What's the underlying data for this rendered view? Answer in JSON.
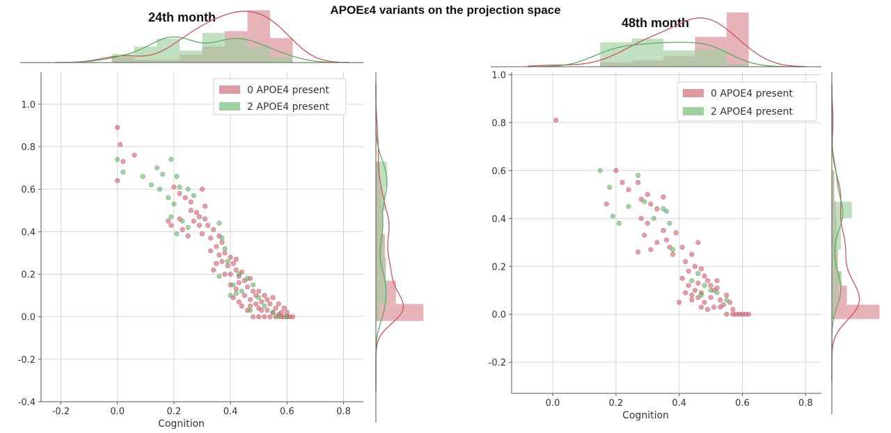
{
  "title": "APOEε4 variants on the projection space",
  "colors": {
    "zero": "#c9525e",
    "two": "#5aaa5f",
    "zero_fill": "#dd9aa1",
    "two_fill": "#9fd09f",
    "grid": "#d6d6d6"
  },
  "chart_data": [
    {
      "type": "scatter",
      "panel_title": "24th month",
      "xlabel": "Cognition",
      "ylabel": "",
      "xlim": [
        -0.27,
        0.87
      ],
      "ylim": [
        -0.4,
        1.15
      ],
      "xticks": [
        "-0.2",
        "0.0",
        "0.2",
        "0.4",
        "0.6",
        "0.8"
      ],
      "yticks": [
        "-0.4",
        "-0.2",
        "0.0",
        "0.2",
        "0.4",
        "0.6",
        "0.8",
        "1.0"
      ],
      "grid": true,
      "legend_position": "top-right",
      "marginals": "histogram + density on top (x) and right (y)",
      "series": [
        {
          "name": "0 APOE4 present",
          "color": "#c9525e",
          "points": [
            [
              0.0,
              0.89
            ],
            [
              0.01,
              0.81
            ],
            [
              0.02,
              0.73
            ],
            [
              0.0,
              0.64
            ],
            [
              0.06,
              0.76
            ],
            [
              0.2,
              0.61
            ],
            [
              0.22,
              0.58
            ],
            [
              0.24,
              0.56
            ],
            [
              0.18,
              0.45
            ],
            [
              0.19,
              0.43
            ],
            [
              0.23,
              0.41
            ],
            [
              0.26,
              0.5
            ],
            [
              0.28,
              0.49
            ],
            [
              0.29,
              0.47
            ],
            [
              0.31,
              0.46
            ],
            [
              0.31,
              0.52
            ],
            [
              0.27,
              0.45
            ],
            [
              0.29,
              0.43
            ],
            [
              0.32,
              0.43
            ],
            [
              0.34,
              0.41
            ],
            [
              0.3,
              0.39
            ],
            [
              0.33,
              0.37
            ],
            [
              0.36,
              0.38
            ],
            [
              0.37,
              0.35
            ],
            [
              0.35,
              0.33
            ],
            [
              0.33,
              0.31
            ],
            [
              0.36,
              0.29
            ],
            [
              0.38,
              0.3
            ],
            [
              0.37,
              0.26
            ],
            [
              0.39,
              0.24
            ],
            [
              0.4,
              0.28
            ],
            [
              0.41,
              0.25
            ],
            [
              0.42,
              0.27
            ],
            [
              0.4,
              0.2
            ],
            [
              0.42,
              0.22
            ],
            [
              0.43,
              0.19
            ],
            [
              0.44,
              0.21
            ],
            [
              0.45,
              0.17
            ],
            [
              0.4,
              0.15
            ],
            [
              0.42,
              0.13
            ],
            [
              0.43,
              0.16
            ],
            [
              0.46,
              0.14
            ],
            [
              0.47,
              0.18
            ],
            [
              0.48,
              0.12
            ],
            [
              0.45,
              0.1
            ],
            [
              0.47,
              0.08
            ],
            [
              0.49,
              0.1
            ],
            [
              0.5,
              0.12
            ],
            [
              0.51,
              0.07
            ],
            [
              0.52,
              0.1
            ],
            [
              0.53,
              0.08
            ],
            [
              0.54,
              0.06
            ],
            [
              0.55,
              0.09
            ],
            [
              0.56,
              0.04
            ],
            [
              0.57,
              0.06
            ],
            [
              0.58,
              0.02
            ],
            [
              0.59,
              0.04
            ],
            [
              0.6,
              0.0
            ],
            [
              0.61,
              0.0
            ],
            [
              0.62,
              0.0
            ],
            [
              0.58,
              0.0
            ],
            [
              0.56,
              0.0
            ],
            [
              0.54,
              0.0
            ],
            [
              0.52,
              0.0
            ],
            [
              0.5,
              0.0
            ],
            [
              0.48,
              0.0
            ],
            [
              0.46,
              0.03
            ],
            [
              0.44,
              0.05
            ],
            [
              0.5,
              0.04
            ],
            [
              0.53,
              0.03
            ],
            [
              0.55,
              0.02
            ],
            [
              0.57,
              0.01
            ],
            [
              0.59,
              0.0
            ],
            [
              0.6,
              0.02
            ],
            [
              0.49,
              0.06
            ],
            [
              0.51,
              0.03
            ],
            [
              0.38,
              0.2
            ],
            [
              0.35,
              0.25
            ],
            [
              0.34,
              0.22
            ],
            [
              0.41,
              0.09
            ],
            [
              0.43,
              0.07
            ],
            [
              0.47,
              0.05
            ],
            [
              0.25,
              0.38
            ],
            [
              0.22,
              0.46
            ],
            [
              0.26,
              0.54
            ],
            [
              0.3,
              0.6
            ]
          ]
        },
        {
          "name": "2 APOE4 present",
          "color": "#5aaa5f",
          "points": [
            [
              0.0,
              0.74
            ],
            [
              0.02,
              0.68
            ],
            [
              0.09,
              0.66
            ],
            [
              0.12,
              0.62
            ],
            [
              0.14,
              0.7
            ],
            [
              0.16,
              0.67
            ],
            [
              0.19,
              0.74
            ],
            [
              0.21,
              0.66
            ],
            [
              0.15,
              0.6
            ],
            [
              0.18,
              0.56
            ],
            [
              0.2,
              0.53
            ],
            [
              0.22,
              0.61
            ],
            [
              0.25,
              0.6
            ],
            [
              0.27,
              0.57
            ],
            [
              0.23,
              0.45
            ],
            [
              0.25,
              0.42
            ],
            [
              0.21,
              0.39
            ],
            [
              0.19,
              0.47
            ],
            [
              0.36,
              0.44
            ],
            [
              0.37,
              0.37
            ],
            [
              0.38,
              0.32
            ],
            [
              0.39,
              0.26
            ],
            [
              0.36,
              0.19
            ],
            [
              0.41,
              0.15
            ],
            [
              0.42,
              0.11
            ],
            [
              0.44,
              0.12
            ],
            [
              0.46,
              0.18
            ],
            [
              0.48,
              0.15
            ],
            [
              0.5,
              0.09
            ],
            [
              0.52,
              0.05
            ],
            [
              0.55,
              0.02
            ],
            [
              0.57,
              0.0
            ],
            [
              0.6,
              0.0
            ],
            [
              0.47,
              0.03
            ],
            [
              0.4,
              0.1
            ],
            [
              0.43,
              0.2
            ]
          ]
        }
      ],
      "top_hist": {
        "bins": [
          -0.02,
          0.06,
          0.14,
          0.22,
          0.3,
          0.38,
          0.46,
          0.54,
          0.62
        ],
        "series": [
          {
            "name": "0 APOE4 present",
            "density": [
              0.09,
              0.05,
              0.05,
              0.14,
              0.28,
              0.55,
              0.92,
              0.43
            ]
          },
          {
            "name": "2 APOE4 present",
            "density": [
              0.15,
              0.28,
              0.42,
              0.21,
              0.52,
              0.42,
              0.28,
              0.1
            ]
          }
        ]
      },
      "right_hist": {
        "bins": [
          -0.02,
          0.06,
          0.17,
          0.28,
          0.39,
          0.5,
          0.61,
          0.73
        ],
        "series": [
          {
            "name": "0 APOE4 present",
            "density": [
              0.95,
              0.4,
              0.2,
              0.18,
              0.14,
              0.12,
              0.08
            ]
          },
          {
            "name": "2 APOE4 present",
            "density": [
              0.08,
              0.22,
              0.18,
              0.15,
              0.12,
              0.18,
              0.22
            ]
          }
        ]
      }
    },
    {
      "type": "scatter",
      "panel_title": "48th month",
      "xlabel": "Cognition",
      "ylabel": "",
      "xlim": [
        -0.13,
        0.85
      ],
      "ylim": [
        -0.33,
        1.01
      ],
      "xticks": [
        "0.0",
        "0.2",
        "0.4",
        "0.6",
        "0.8"
      ],
      "yticks": [
        "-0.2",
        "0.0",
        "0.2",
        "0.4",
        "0.6",
        "0.8",
        "1.0"
      ],
      "grid": true,
      "legend_position": "top-right",
      "marginals": "histogram + density on top (x) and right (y)",
      "series": [
        {
          "name": "0 APOE4 present",
          "color": "#c9525e",
          "points": [
            [
              0.01,
              0.81
            ],
            [
              0.2,
              0.6
            ],
            [
              0.22,
              0.55
            ],
            [
              0.24,
              0.52
            ],
            [
              0.27,
              0.55
            ],
            [
              0.17,
              0.46
            ],
            [
              0.28,
              0.48
            ],
            [
              0.3,
              0.5
            ],
            [
              0.31,
              0.46
            ],
            [
              0.33,
              0.44
            ],
            [
              0.35,
              0.49
            ],
            [
              0.28,
              0.4
            ],
            [
              0.3,
              0.38
            ],
            [
              0.27,
              0.26
            ],
            [
              0.31,
              0.27
            ],
            [
              0.29,
              0.33
            ],
            [
              0.33,
              0.3
            ],
            [
              0.35,
              0.35
            ],
            [
              0.36,
              0.31
            ],
            [
              0.37,
              0.28
            ],
            [
              0.41,
              0.28
            ],
            [
              0.42,
              0.22
            ],
            [
              0.43,
              0.18
            ],
            [
              0.44,
              0.25
            ],
            [
              0.45,
              0.2
            ],
            [
              0.46,
              0.3
            ],
            [
              0.47,
              0.19
            ],
            [
              0.48,
              0.16
            ],
            [
              0.49,
              0.14
            ],
            [
              0.41,
              0.15
            ],
            [
              0.43,
              0.12
            ],
            [
              0.45,
              0.1
            ],
            [
              0.46,
              0.07
            ],
            [
              0.47,
              0.09
            ],
            [
              0.48,
              0.05
            ],
            [
              0.5,
              0.07
            ],
            [
              0.51,
              0.1
            ],
            [
              0.52,
              0.11
            ],
            [
              0.53,
              0.06
            ],
            [
              0.54,
              0.04
            ],
            [
              0.55,
              0.08
            ],
            [
              0.56,
              0.05
            ],
            [
              0.57,
              0.02
            ],
            [
              0.58,
              0.0
            ],
            [
              0.59,
              0.0
            ],
            [
              0.6,
              0.0
            ],
            [
              0.61,
              0.0
            ],
            [
              0.62,
              0.0
            ],
            [
              0.57,
              0.0
            ],
            [
              0.55,
              0.0
            ],
            [
              0.53,
              0.03
            ],
            [
              0.51,
              0.03
            ],
            [
              0.49,
              0.02
            ],
            [
              0.47,
              0.03
            ],
            [
              0.44,
              0.06
            ],
            [
              0.42,
              0.09
            ],
            [
              0.4,
              0.05
            ],
            [
              0.5,
              0.12
            ],
            [
              0.52,
              0.14
            ],
            [
              0.46,
              0.13
            ],
            [
              0.44,
              0.08
            ],
            [
              0.39,
              0.34
            ],
            [
              0.38,
              0.25
            ]
          ]
        },
        {
          "name": "2 APOE4 present",
          "color": "#5aaa5f",
          "points": [
            [
              0.15,
              0.6
            ],
            [
              0.18,
              0.53
            ],
            [
              0.19,
              0.41
            ],
            [
              0.21,
              0.38
            ],
            [
              0.24,
              0.45
            ],
            [
              0.27,
              0.58
            ],
            [
              0.29,
              0.47
            ],
            [
              0.32,
              0.4
            ],
            [
              0.35,
              0.44
            ],
            [
              0.37,
              0.38
            ],
            [
              0.36,
              0.43
            ],
            [
              0.38,
              0.27
            ],
            [
              0.46,
              0.17
            ],
            [
              0.48,
              0.12
            ],
            [
              0.5,
              0.1
            ],
            [
              0.52,
              0.09
            ],
            [
              0.55,
              0.06
            ],
            [
              0.44,
              0.14
            ],
            [
              0.47,
              0.08
            ]
          ]
        }
      ],
      "top_hist": {
        "bins": [
          0.15,
          0.25,
          0.35,
          0.45,
          0.55,
          0.62
        ],
        "series": [
          {
            "name": "0 APOE4 present",
            "density": [
              0.08,
              0.12,
              0.2,
              0.55,
              1.0
            ]
          },
          {
            "name": "2 APOE4 present",
            "density": [
              0.45,
              0.52,
              0.3,
              0.32,
              0.05
            ]
          }
        ]
      },
      "right_hist": {
        "bins": [
          -0.02,
          0.04,
          0.12,
          0.18,
          0.27,
          0.4,
          0.47,
          0.6
        ],
        "series": [
          {
            "name": "0 APOE4 present",
            "density": [
              0.95,
              0.3,
              0.17,
              0.12,
              0.1,
              0.08,
              0.05
            ]
          },
          {
            "name": "2 APOE4 present",
            "density": [
              0.05,
              0.1,
              0.2,
              0.12,
              0.18,
              0.4,
              0.05
            ]
          }
        ]
      }
    }
  ]
}
